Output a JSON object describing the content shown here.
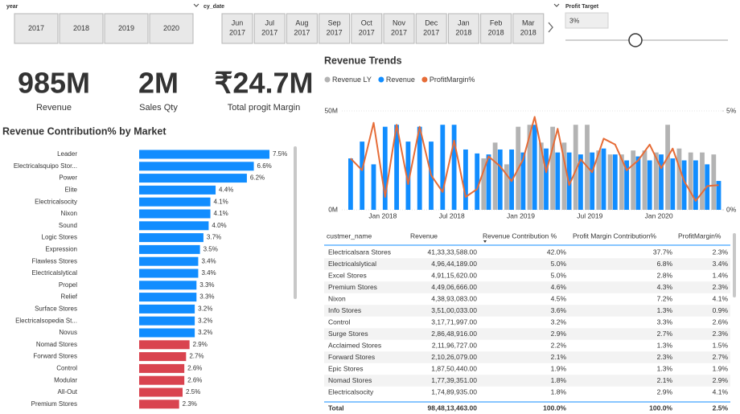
{
  "slicers": {
    "year": {
      "title": "year",
      "options": [
        "2017",
        "2018",
        "2019",
        "2020"
      ]
    },
    "cy_date": {
      "title": "cy_date",
      "options": [
        {
          "month": "Jun",
          "year": "2017"
        },
        {
          "month": "Jul",
          "year": "2017"
        },
        {
          "month": "Aug",
          "year": "2017"
        },
        {
          "month": "Sep",
          "year": "2017"
        },
        {
          "month": "Oct",
          "year": "2017"
        },
        {
          "month": "Nov",
          "year": "2017"
        },
        {
          "month": "Dec",
          "year": "2017"
        },
        {
          "month": "Jan",
          "year": "2018"
        },
        {
          "month": "Feb",
          "year": "2018"
        },
        {
          "month": "Mar",
          "year": "2018"
        }
      ]
    },
    "profit_target": {
      "title": "Profit Target",
      "value": "3%"
    }
  },
  "kpis": [
    {
      "value": "985M",
      "label": "Revenue"
    },
    {
      "value": "2M",
      "label": "Sales Qty"
    },
    {
      "value": "₹24.7M",
      "label": "Total progit Margin"
    }
  ],
  "chart_data": [
    {
      "type": "bar",
      "orientation": "horizontal",
      "title": "Revenue Contribution% by Market",
      "categories": [
        "Leader",
        "Electricalsquipo Stor...",
        "Power",
        "Elite",
        "Electricalsocity",
        "Nixon",
        "Sound",
        "Logic Stores",
        "Expression",
        "Flawless Stores",
        "Electricalslytical",
        "Propel",
        "Relief",
        "Surface Stores",
        "Electricalsopedia St...",
        "Novus",
        "Nomad Stores",
        "Forward Stores",
        "Control",
        "Modular",
        "All-Out",
        "Premium Stores"
      ],
      "values": [
        7.5,
        6.6,
        6.2,
        4.4,
        4.1,
        4.1,
        4.0,
        3.7,
        3.5,
        3.4,
        3.4,
        3.3,
        3.3,
        3.2,
        3.2,
        3.2,
        2.9,
        2.7,
        2.6,
        2.6,
        2.5,
        2.3
      ],
      "value_labels": [
        "7.5%",
        "6.6%",
        "6.2%",
        "4.4%",
        "4.1%",
        "4.1%",
        "4.0%",
        "3.7%",
        "3.5%",
        "3.4%",
        "3.4%",
        "3.3%",
        "3.3%",
        "3.2%",
        "3.2%",
        "3.2%",
        "2.9%",
        "2.7%",
        "2.6%",
        "2.6%",
        "2.5%",
        "2.3%"
      ],
      "colors": [
        "#118dff",
        "#118dff",
        "#118dff",
        "#118dff",
        "#118dff",
        "#118dff",
        "#118dff",
        "#118dff",
        "#118dff",
        "#118dff",
        "#118dff",
        "#118dff",
        "#118dff",
        "#118dff",
        "#118dff",
        "#118dff",
        "#d9434f",
        "#d9434f",
        "#d9434f",
        "#d9434f",
        "#d9434f",
        "#d9434f"
      ]
    },
    {
      "type": "combo",
      "title": "Revenue Trends",
      "categories": [
        null,
        null,
        null,
        "Jan 2018",
        null,
        null,
        null,
        null,
        null,
        "Jul 2018",
        null,
        null,
        null,
        null,
        null,
        "Jan 2019",
        null,
        null,
        null,
        null,
        null,
        "Jul 2019",
        null,
        null,
        null,
        null,
        null,
        "Jan 2020",
        null,
        null,
        null,
        null,
        null
      ],
      "series": [
        {
          "name": "Revenue LY",
          "color": "#b3b3b3",
          "type": "bar",
          "values": [
            null,
            null,
            null,
            null,
            null,
            null,
            null,
            null,
            null,
            null,
            null,
            null,
            26,
            34,
            23,
            42,
            43,
            34,
            42,
            34,
            43,
            43,
            30,
            28,
            28,
            30,
            30,
            29,
            43,
            31,
            29,
            29,
            28
          ]
        },
        {
          "name": "Revenue",
          "color": "#118dff",
          "type": "bar",
          "values": [
            26,
            34.5,
            23,
            42,
            43,
            34.5,
            42,
            34.5,
            43,
            43,
            30.5,
            28.5,
            28,
            30.5,
            30.5,
            29,
            43,
            31,
            29,
            29,
            28,
            29,
            31,
            28,
            25,
            27,
            25,
            28,
            26,
            25,
            25,
            23,
            14.6
          ]
        },
        {
          "name": "ProfitMargin%",
          "color": "#e66c37",
          "type": "line",
          "axis": "y2",
          "values": [
            2.6,
            2.0,
            4.4,
            0.65,
            4.3,
            1.3,
            4.2,
            1.75,
            0.9,
            3.5,
            0.65,
            1.05,
            2.7,
            2.2,
            1.45,
            2.55,
            4.7,
            1.9,
            4.1,
            1.25,
            2.55,
            1.9,
            3.6,
            3.3,
            2.0,
            2.5,
            3.3,
            2.1,
            3.1,
            1.45,
            0.45,
            1.2,
            1.25
          ]
        }
      ],
      "ylim": [
        0,
        55
      ],
      "yticks": [
        {
          "value": 0,
          "label": "0M"
        },
        {
          "value": 50,
          "label": "50M"
        }
      ],
      "y2lim": [
        0,
        5.5
      ],
      "y2ticks": [
        {
          "value": 0,
          "label": "0%"
        },
        {
          "value": 5,
          "label": "5%"
        }
      ],
      "grid": true
    }
  ],
  "table": {
    "headers": [
      "custmer_name",
      "Revenue",
      "Revenue Contribution %",
      "Profit Margin Contribution%",
      "ProfitMargin%"
    ],
    "rows": [
      [
        "Electricalsara Stores",
        "41,33,33,588.00",
        "42.0%",
        "37.7%",
        "2.3%"
      ],
      [
        "Electricalslytical",
        "4,96,44,189.00",
        "5.0%",
        "6.8%",
        "3.4%"
      ],
      [
        "Excel Stores",
        "4,91,15,620.00",
        "5.0%",
        "2.8%",
        "1.4%"
      ],
      [
        "Premium Stores",
        "4,49,06,666.00",
        "4.6%",
        "4.3%",
        "2.3%"
      ],
      [
        "Nixon",
        "4,38,93,083.00",
        "4.5%",
        "7.2%",
        "4.1%"
      ],
      [
        "Info Stores",
        "3,51,00,033.00",
        "3.6%",
        "1.3%",
        "0.9%"
      ],
      [
        "Control",
        "3,17,71,997.00",
        "3.2%",
        "3.3%",
        "2.6%"
      ],
      [
        "Surge Stores",
        "2,86,48,916.00",
        "2.9%",
        "2.7%",
        "2.3%"
      ],
      [
        "Acclaimed Stores",
        "2,11,96,727.00",
        "2.2%",
        "1.3%",
        "1.5%"
      ],
      [
        "Forward Stores",
        "2,10,26,079.00",
        "2.1%",
        "2.3%",
        "2.7%"
      ],
      [
        "Epic Stores",
        "1,87,50,440.00",
        "1.9%",
        "1.3%",
        "1.9%"
      ],
      [
        "Nomad Stores",
        "1,77,39,351.00",
        "1.8%",
        "2.1%",
        "2.9%"
      ],
      [
        "Electricalsocity",
        "1,74,89,935.00",
        "1.8%",
        "2.9%",
        "4.1%"
      ]
    ],
    "total": [
      "Total",
      "98,48,13,463.00",
      "100.0%",
      "100.0%",
      "2.5%"
    ]
  }
}
